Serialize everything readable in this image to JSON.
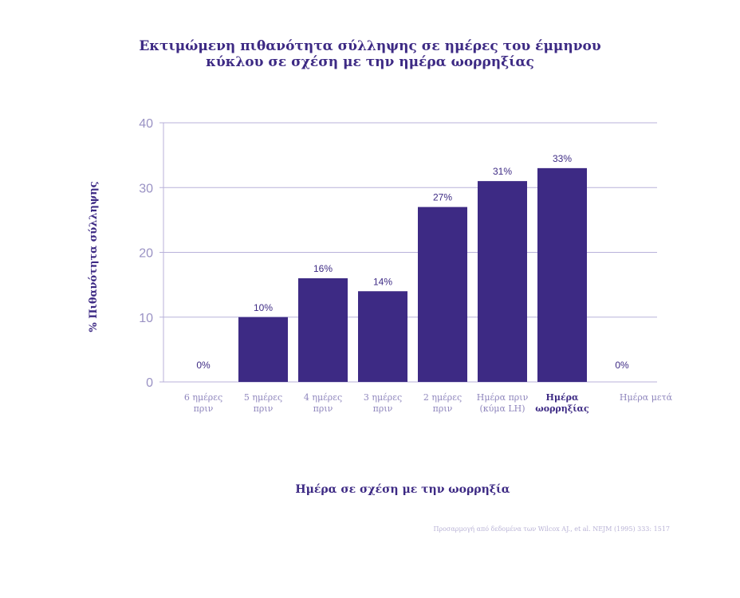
{
  "chart_data": {
    "type": "bar",
    "title": [
      "Εκτιμώμενη πιθανότητα σύλληψης σε ημέρες του έμμηνου",
      "κύκλου σε σχέση με την ημέρα ωορρηξίας"
    ],
    "ylabel": "% Πιθανότητα σύλληψης",
    "xlabel": "Ημέρα σε σχέση με την ωορρηξία",
    "ylim": [
      0,
      40
    ],
    "yticks": [
      0,
      10,
      20,
      30,
      40
    ],
    "grid": true,
    "categories": [
      [
        "6 ημέρες",
        "πριν"
      ],
      [
        "5 ημέρες",
        "πριν"
      ],
      [
        "4 ημέρες",
        "πριν"
      ],
      [
        "3 ημέρες",
        "πριν"
      ],
      [
        "2 ημέρες",
        "πριν"
      ],
      [
        "Ημέρα πριν",
        "(κύμα LH)"
      ],
      [
        "Ημέρα",
        "ωορρηξίας"
      ],
      [
        "Ημέρα μετά"
      ]
    ],
    "values": [
      0,
      10,
      16,
      14,
      27,
      31,
      33,
      0
    ],
    "value_labels": [
      "0%",
      "10%",
      "16%",
      "14%",
      "27%",
      "31%",
      "33%",
      "0%"
    ],
    "highlight_category": 6,
    "bar_color": "#3d2a84",
    "grid_color": "#b8b2da"
  },
  "source": "Προσαρμογή από δεδομένα των Wilcox AJ., et al. NEJM (1995) 333: 1517"
}
